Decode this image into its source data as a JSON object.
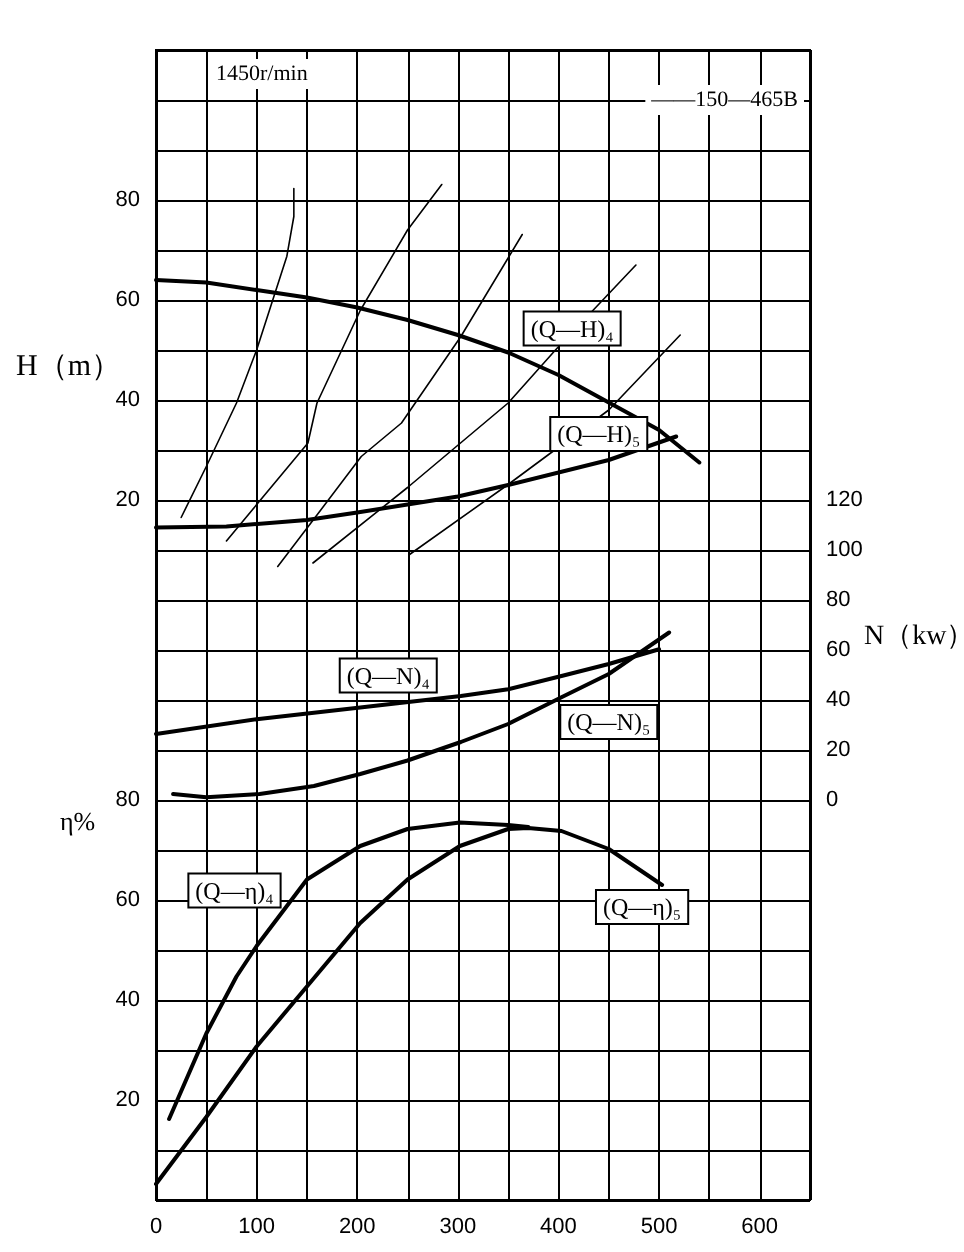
{
  "chart_data": {
    "type": "line",
    "ylabel": "H（m）",
    "y2label": "N（kw）",
    "y3label": "η%",
    "annotations": [
      "1450r/min",
      "——150—465B"
    ],
    "xlim": [
      0,
      650
    ],
    "xticks": [
      0,
      {
        "value": 50,
        "label": null
      },
      100,
      {
        "value": 150,
        "label": null
      },
      200,
      {
        "value": 250,
        "label": null
      },
      300,
      {
        "value": 350,
        "label": null
      },
      400,
      {
        "value": 450,
        "label": null
      },
      500,
      {
        "value": 550,
        "label": null
      },
      600,
      {
        "value": 650,
        "label": null
      }
    ],
    "ylim": [
      -120,
      110
    ],
    "yticks": [
      {
        "value": -120,
        "label": null
      },
      {
        "value": -110,
        "label": null
      },
      {
        "value": -100,
        "label": null
      },
      {
        "value": -90,
        "label": null
      },
      {
        "value": -80,
        "label": null
      },
      {
        "value": -70,
        "label": null
      },
      {
        "value": -60,
        "label": null
      },
      {
        "value": -50,
        "label": null
      },
      {
        "value": -40,
        "label": null
      },
      {
        "value": -30,
        "label": null
      },
      {
        "value": -20,
        "label": null
      },
      {
        "value": -10,
        "label": null
      },
      {
        "value": 0,
        "label": null
      },
      {
        "value": 10,
        "label": null
      },
      20,
      {
        "value": 30,
        "label": null
      },
      40,
      {
        "value": 50,
        "label": null
      },
      60,
      {
        "value": 70,
        "label": null
      },
      80,
      {
        "value": 90,
        "label": null
      },
      {
        "value": 100,
        "label": null
      },
      {
        "value": 110,
        "label": null
      }
    ],
    "y2lim": [
      -160,
      300
    ],
    "y2ticks": [
      0,
      20,
      40,
      60,
      80,
      100,
      120
    ],
    "y3lim": [
      0,
      230
    ],
    "y3ticks": [
      20,
      40,
      60,
      80
    ],
    "grid": true,
    "legend": false,
    "marker": "none",
    "line_style": "solid",
    "series": [
      {
        "name": "(Q—H)₄",
        "color": "#000000",
        "x": [
          0,
          50,
          100,
          150,
          200,
          250,
          300,
          350,
          400,
          450,
          500,
          540
        ],
        "values": [
          64,
          63.5,
          62,
          60.5,
          58.5,
          56,
          53,
          49.5,
          45,
          39.5,
          34,
          27.5
        ]
      },
      {
        "name": "(Q—H)₅",
        "color": "#000000",
        "x": [
          0,
          70,
          150,
          200,
          300,
          350,
          450,
          517
        ],
        "values": [
          14.5,
          14.7,
          16,
          17.5,
          20.7,
          23,
          28,
          32.7
        ]
      },
      {
        "name": "(Q—N)₄",
        "color": "#000000",
        "axis": "y2",
        "x": [
          0,
          100,
          203,
          303,
          350,
          403,
          450,
          500
        ],
        "values": [
          26.4,
          32.3,
          37,
          41.6,
          44.3,
          49.6,
          54.4,
          60.3
        ]
      },
      {
        "name": "(Q—N)₅",
        "color": "#000000",
        "axis": "y2",
        "x": [
          17,
          50,
          103,
          157,
          203,
          250,
          303,
          350,
          403,
          450,
          510
        ],
        "values": [
          2.4,
          1.1,
          2.4,
          5.6,
          10.4,
          15.8,
          23.2,
          30.4,
          41.1,
          50.4,
          67
        ]
      },
      {
        "name": "(Q—η)₄",
        "color": "#000000",
        "axis": "y3",
        "x": [
          13,
          50,
          80,
          100,
          150,
          203,
          250,
          302,
          350,
          370
        ],
        "values": [
          16.2,
          33.3,
          44.7,
          50.8,
          64.1,
          70.8,
          74.2,
          75.5,
          75,
          74.6
        ]
      },
      {
        "name": "(Q—η)₅",
        "color": "#000000",
        "axis": "y3",
        "x": [
          0,
          50,
          100,
          150,
          203,
          250,
          302,
          350,
          370,
          403,
          450,
          503
        ],
        "values": [
          3.2,
          16.6,
          30.7,
          42.7,
          55.4,
          64.1,
          70.8,
          74.2,
          74.4,
          73.8,
          70.2,
          63
        ]
      },
      {
        "color": "#000000",
        "x": [
          25,
          50,
          80,
          100,
          130,
          137,
          137
        ],
        "values": [
          16.5,
          26.7,
          39.4,
          50,
          68.7,
          76.7,
          82.3
        ]
      },
      {
        "color": "#000000",
        "x": [
          70,
          151,
          160,
          203,
          250,
          284
        ],
        "values": [
          11.8,
          31.4,
          39.4,
          57.9,
          74,
          83.1
        ]
      },
      {
        "color": "#000000",
        "x": [
          121,
          160,
          204,
          244,
          303,
          364
        ],
        "values": [
          6.7,
          17,
          28.7,
          35.4,
          52.7,
          73.1
        ]
      },
      {
        "color": "#000000",
        "x": [
          156,
          250,
          350,
          397,
          477
        ],
        "values": [
          7.4,
          22.5,
          39.4,
          50,
          67
        ]
      },
      {
        "color": "#000000",
        "x": [
          252,
          350,
          450,
          521
        ],
        "values": [
          9.1,
          23.1,
          38,
          53
        ]
      }
    ]
  }
}
